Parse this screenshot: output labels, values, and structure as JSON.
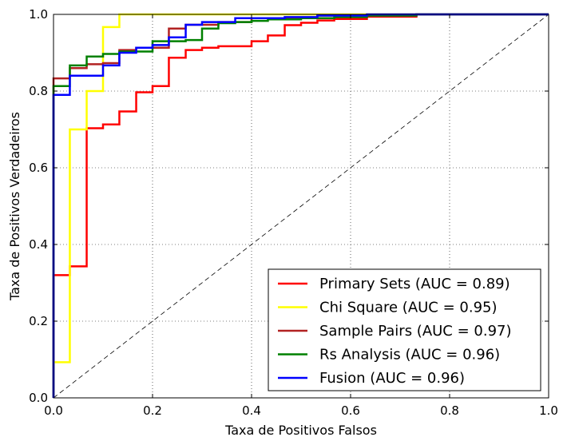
{
  "chart_data": {
    "type": "line",
    "title": "",
    "xlabel": "Taxa de Positivos Falsos",
    "ylabel": "Taxa de Positivos Verdadeiros",
    "xlim": [
      0,
      1
    ],
    "ylim": [
      0,
      1
    ],
    "xticks": [
      "0.0",
      "0.2",
      "0.4",
      "0.6",
      "0.8",
      "1.0"
    ],
    "yticks": [
      "0.0",
      "0.2",
      "0.4",
      "0.6",
      "0.8",
      "1.0"
    ],
    "grid": true,
    "legend_position": "lower-right",
    "diagonal": {
      "style": "dashed",
      "color": "#000000",
      "points": [
        [
          0,
          0
        ],
        [
          1,
          1
        ]
      ]
    },
    "series": [
      {
        "name": "Primary Sets (AUC = 0.89)",
        "color": "#ff0000",
        "step": true,
        "points": [
          [
            0,
            0
          ],
          [
            0,
            0.32
          ],
          [
            0.033,
            0.32
          ],
          [
            0.033,
            0.343
          ],
          [
            0.067,
            0.343
          ],
          [
            0.067,
            0.703
          ],
          [
            0.1,
            0.703
          ],
          [
            0.1,
            0.713
          ],
          [
            0.133,
            0.713
          ],
          [
            0.133,
            0.747
          ],
          [
            0.167,
            0.747
          ],
          [
            0.167,
            0.797
          ],
          [
            0.2,
            0.797
          ],
          [
            0.2,
            0.813
          ],
          [
            0.233,
            0.813
          ],
          [
            0.233,
            0.887
          ],
          [
            0.267,
            0.887
          ],
          [
            0.267,
            0.907
          ],
          [
            0.3,
            0.907
          ],
          [
            0.3,
            0.913
          ],
          [
            0.333,
            0.913
          ],
          [
            0.333,
            0.917
          ],
          [
            0.4,
            0.917
          ],
          [
            0.4,
            0.93
          ],
          [
            0.433,
            0.93
          ],
          [
            0.433,
            0.945
          ],
          [
            0.467,
            0.945
          ],
          [
            0.467,
            0.972
          ],
          [
            0.5,
            0.972
          ],
          [
            0.5,
            0.978
          ],
          [
            0.533,
            0.978
          ],
          [
            0.533,
            0.984
          ],
          [
            0.567,
            0.984
          ],
          [
            0.567,
            0.988
          ],
          [
            0.633,
            0.988
          ],
          [
            0.633,
            0.994
          ],
          [
            0.733,
            0.994
          ],
          [
            0.733,
            1.0
          ],
          [
            1.0,
            1.0
          ]
        ]
      },
      {
        "name": "Chi Square (AUC = 0.95)",
        "color": "#ffff00",
        "step": true,
        "points": [
          [
            0,
            0
          ],
          [
            0,
            0.093
          ],
          [
            0.033,
            0.093
          ],
          [
            0.033,
            0.7
          ],
          [
            0.067,
            0.7
          ],
          [
            0.067,
            0.8
          ],
          [
            0.1,
            0.8
          ],
          [
            0.1,
            0.967
          ],
          [
            0.133,
            0.967
          ],
          [
            0.133,
            1.0
          ],
          [
            1.0,
            1.0
          ]
        ]
      },
      {
        "name": "Sample Pairs (AUC = 0.97)",
        "color": "#b22222",
        "step": true,
        "points": [
          [
            0,
            0
          ],
          [
            0,
            0.833
          ],
          [
            0.033,
            0.833
          ],
          [
            0.033,
            0.86
          ],
          [
            0.067,
            0.86
          ],
          [
            0.067,
            0.87
          ],
          [
            0.1,
            0.87
          ],
          [
            0.1,
            0.873
          ],
          [
            0.133,
            0.873
          ],
          [
            0.133,
            0.907
          ],
          [
            0.167,
            0.907
          ],
          [
            0.167,
            0.913
          ],
          [
            0.233,
            0.913
          ],
          [
            0.233,
            0.963
          ],
          [
            0.267,
            0.963
          ],
          [
            0.267,
            0.973
          ],
          [
            0.333,
            0.973
          ],
          [
            0.333,
            0.98
          ],
          [
            0.4,
            0.98
          ],
          [
            0.4,
            0.99
          ],
          [
            0.533,
            0.99
          ],
          [
            0.533,
            0.997
          ],
          [
            0.733,
            0.997
          ],
          [
            0.733,
            1.0
          ],
          [
            1.0,
            1.0
          ]
        ]
      },
      {
        "name": "Rs Analysis (AUC = 0.96)",
        "color": "#008000",
        "step": true,
        "points": [
          [
            0,
            0
          ],
          [
            0,
            0.813
          ],
          [
            0.033,
            0.813
          ],
          [
            0.033,
            0.867
          ],
          [
            0.067,
            0.867
          ],
          [
            0.067,
            0.89
          ],
          [
            0.1,
            0.89
          ],
          [
            0.1,
            0.897
          ],
          [
            0.133,
            0.897
          ],
          [
            0.133,
            0.903
          ],
          [
            0.2,
            0.903
          ],
          [
            0.2,
            0.93
          ],
          [
            0.267,
            0.93
          ],
          [
            0.267,
            0.933
          ],
          [
            0.3,
            0.933
          ],
          [
            0.3,
            0.963
          ],
          [
            0.333,
            0.963
          ],
          [
            0.333,
            0.977
          ],
          [
            0.367,
            0.977
          ],
          [
            0.367,
            0.98
          ],
          [
            0.4,
            0.98
          ],
          [
            0.4,
            0.983
          ],
          [
            0.433,
            0.983
          ],
          [
            0.433,
            0.987
          ],
          [
            0.5,
            0.987
          ],
          [
            0.5,
            0.99
          ],
          [
            0.567,
            0.99
          ],
          [
            0.567,
            0.993
          ],
          [
            0.633,
            0.993
          ],
          [
            0.633,
            0.997
          ],
          [
            0.733,
            0.997
          ],
          [
            0.733,
            1.0
          ],
          [
            1.0,
            1.0
          ]
        ]
      },
      {
        "name": "Fusion (AUC = 0.96)",
        "color": "#0000ff",
        "step": true,
        "points": [
          [
            0,
            0
          ],
          [
            0,
            0.79
          ],
          [
            0.033,
            0.79
          ],
          [
            0.033,
            0.84
          ],
          [
            0.1,
            0.84
          ],
          [
            0.1,
            0.867
          ],
          [
            0.133,
            0.867
          ],
          [
            0.133,
            0.9
          ],
          [
            0.167,
            0.9
          ],
          [
            0.167,
            0.913
          ],
          [
            0.2,
            0.913
          ],
          [
            0.2,
            0.92
          ],
          [
            0.233,
            0.92
          ],
          [
            0.233,
            0.94
          ],
          [
            0.267,
            0.94
          ],
          [
            0.267,
            0.973
          ],
          [
            0.3,
            0.973
          ],
          [
            0.3,
            0.98
          ],
          [
            0.367,
            0.98
          ],
          [
            0.367,
            0.99
          ],
          [
            0.467,
            0.99
          ],
          [
            0.467,
            0.993
          ],
          [
            0.533,
            0.993
          ],
          [
            0.533,
            0.997
          ],
          [
            0.633,
            0.997
          ],
          [
            0.633,
            1.0
          ],
          [
            1.0,
            1.0
          ]
        ]
      }
    ]
  }
}
